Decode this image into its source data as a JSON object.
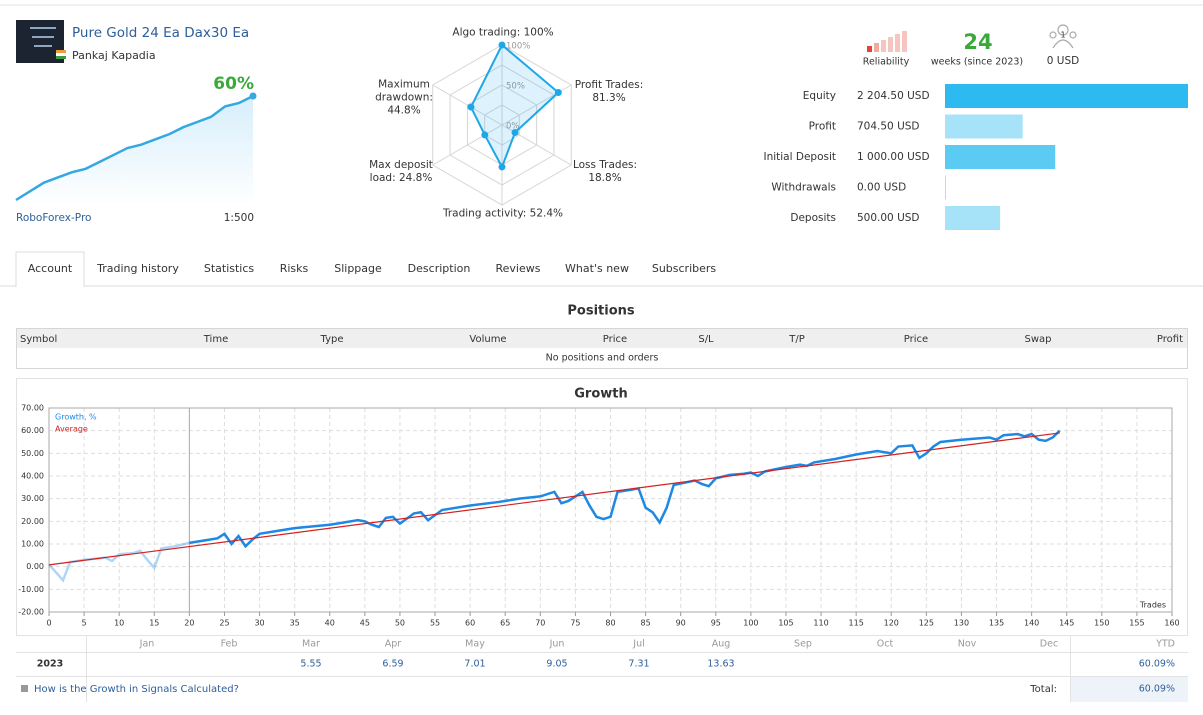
{
  "header": {
    "title": "Pure Gold 24 Ea Dax30 Ea",
    "author": "Pankaj Kapadia",
    "growth": "60%",
    "broker": "RoboForex-Pro",
    "leverage": "1:500"
  },
  "stats": {
    "reliability": "Reliability",
    "weeks": 24,
    "weeks_label": "weeks (since 2023)",
    "subscribers": 1,
    "subscription": "0 USD"
  },
  "tabs": {
    "items": [
      "Account",
      "Trading history",
      "Statistics",
      "Risks",
      "Slippage",
      "Description",
      "Reviews",
      "What's new",
      "Subscribers"
    ],
    "active": 0
  },
  "positions": {
    "title": "Positions",
    "columns": [
      "Symbol",
      "Time",
      "Type",
      "Volume",
      "Price",
      "S/L",
      "T/P",
      "Price",
      "Swap",
      "Profit"
    ],
    "empty": "No positions and orders"
  },
  "monthly": {
    "months": [
      "Jan",
      "Feb",
      "Mar",
      "Apr",
      "May",
      "Jun",
      "Jul",
      "Aug",
      "Sep",
      "Oct",
      "Nov",
      "Dec"
    ],
    "ytd_header": "YTD",
    "year": "2023",
    "values": [
      null,
      null,
      5.55,
      6.59,
      7.01,
      9.05,
      7.31,
      13.63,
      null,
      null,
      null,
      null
    ],
    "ytd": {
      "value": 60.09,
      "label": "60.09%"
    }
  },
  "footer": {
    "link": "How is the Growth in Signals Calculated?",
    "total_label": "Total:",
    "total": {
      "value": 60.09,
      "label": "60.09%"
    }
  },
  "chart_data": [
    {
      "type": "area",
      "color": "#35a8e0",
      "values": [
        0,
        5,
        10,
        13,
        16,
        18,
        22,
        26,
        30,
        32,
        35,
        38,
        42,
        45,
        48,
        54,
        56,
        60
      ]
    },
    {
      "type": "radar",
      "color": "#1ea7e8",
      "categories": [
        "Algo trading:",
        "Profit Trades:",
        "Loss Trades:",
        "Trading activity:",
        "Max deposit load:",
        "Maximum drawdown:"
      ],
      "values": [
        100,
        81.3,
        18.8,
        52.4,
        24.8,
        44.8
      ],
      "value_labels": [
        "100%",
        "81.3%",
        "18.8%",
        "52.4%",
        "24.8%",
        "44.8%"
      ],
      "rlim": [
        0,
        100
      ],
      "rticks": [
        {
          "value": 0,
          "label": "0%"
        },
        {
          "value": 50,
          "label": "50%"
        },
        {
          "value": 100,
          "label": "100%"
        }
      ]
    },
    {
      "type": "hbar",
      "categories": [
        "Equity",
        "Profit",
        "Initial Deposit",
        "Withdrawals",
        "Deposits"
      ],
      "values": [
        2204.5,
        704.5,
        1000,
        0,
        500
      ],
      "value_labels": [
        "2 204.50 USD",
        "704.50 USD",
        "1 000.00 USD",
        "0.00 USD",
        "500.00 USD"
      ],
      "colors": [
        "#2cbaf0",
        "#a6e3f8",
        "#5ccbf4",
        "#a6e3f8",
        "#a6e3f8"
      ]
    },
    {
      "type": "line",
      "title": "Growth",
      "x_label": "Trades",
      "grid": true,
      "marker_x": 20,
      "xlim": [
        0,
        160
      ],
      "xticks": [
        0,
        5,
        10,
        15,
        20,
        25,
        30,
        35,
        40,
        45,
        50,
        55,
        60,
        65,
        70,
        75,
        80,
        85,
        90,
        95,
        100,
        105,
        110,
        115,
        120,
        125,
        130,
        135,
        140,
        145,
        150,
        155,
        160
      ],
      "ylim": [
        -20,
        70
      ],
      "yticks": [
        {
          "value": -20,
          "label": "-20.00"
        },
        {
          "value": -10,
          "label": "-10.00"
        },
        {
          "value": 0,
          "label": "0.00"
        },
        {
          "value": 10,
          "label": "10.00"
        },
        {
          "value": 20,
          "label": "20.00"
        },
        {
          "value": 30,
          "label": "30.00"
        },
        {
          "value": 40,
          "label": "40.00"
        },
        {
          "value": 50,
          "label": "50.00"
        },
        {
          "value": 60,
          "label": "60.00"
        },
        {
          "value": 70,
          "label": "70.00"
        }
      ],
      "series": [
        {
          "name": "Growth, %",
          "color": "#1e88e5",
          "x": [
            0,
            2,
            3,
            5,
            8,
            9,
            10,
            12,
            13,
            14,
            15,
            16,
            18,
            20,
            22,
            24,
            25,
            26,
            27,
            28,
            29,
            30,
            32,
            35,
            40,
            42,
            44,
            45,
            46,
            47,
            48,
            49,
            50,
            52,
            53,
            54,
            56,
            60,
            64,
            67,
            70,
            72,
            73,
            74,
            75,
            76,
            77,
            78,
            79,
            80,
            81,
            83,
            84,
            85,
            86,
            87,
            88,
            89,
            92,
            93,
            94,
            95,
            97,
            99,
            100,
            101,
            102,
            105,
            107,
            108,
            109,
            112,
            115,
            118,
            120,
            121,
            123,
            124,
            125,
            126,
            127,
            130,
            132,
            134,
            135,
            136,
            138,
            139,
            140,
            141,
            142,
            143,
            144
          ],
          "values": [
            1,
            -6,
            2,
            3,
            4,
            2.5,
            5.5,
            6,
            7,
            3,
            -0.5,
            8,
            9,
            10.5,
            11.5,
            12.5,
            14.5,
            10,
            13.5,
            9,
            12,
            14.5,
            15.5,
            17,
            18.5,
            19.5,
            20.5,
            20,
            18.5,
            17.5,
            21.5,
            22,
            19,
            23.5,
            24,
            20.5,
            25,
            27,
            28.5,
            30,
            31,
            33,
            28,
            29,
            31,
            33,
            27,
            22,
            21,
            22,
            33,
            34,
            34.5,
            26,
            24,
            19.5,
            26,
            36,
            38,
            36.5,
            35.5,
            39,
            40.5,
            41,
            41.5,
            40,
            42,
            44,
            45,
            44.5,
            46,
            47.5,
            49.5,
            51,
            50,
            53,
            53.5,
            48,
            50,
            53,
            55,
            56,
            56.5,
            57,
            56,
            58,
            58.5,
            57.5,
            58.5,
            56,
            55.5,
            57,
            60
          ]
        },
        {
          "name": "Average",
          "color": "#d42020",
          "x": [
            0,
            144
          ],
          "values": [
            0.8,
            59
          ]
        }
      ]
    }
  ]
}
